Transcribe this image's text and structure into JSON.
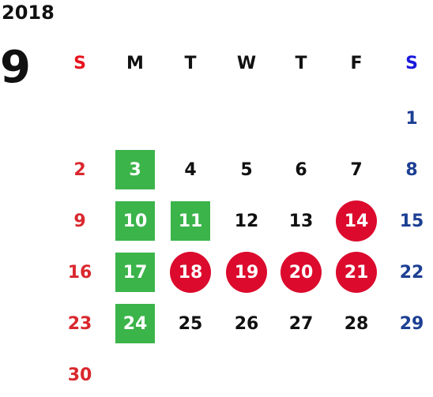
{
  "calendar": {
    "year": "2018",
    "month": "9",
    "weekdays": [
      "S",
      "M",
      "T",
      "W",
      "T",
      "F",
      "S"
    ],
    "days": [
      {
        "day": "1",
        "week": 0,
        "weekday": 6,
        "mark": "none"
      },
      {
        "day": "2",
        "week": 1,
        "weekday": 0,
        "mark": "none"
      },
      {
        "day": "3",
        "week": 1,
        "weekday": 1,
        "mark": "square"
      },
      {
        "day": "4",
        "week": 1,
        "weekday": 2,
        "mark": "none"
      },
      {
        "day": "5",
        "week": 1,
        "weekday": 3,
        "mark": "none"
      },
      {
        "day": "6",
        "week": 1,
        "weekday": 4,
        "mark": "none"
      },
      {
        "day": "7",
        "week": 1,
        "weekday": 5,
        "mark": "none"
      },
      {
        "day": "8",
        "week": 1,
        "weekday": 6,
        "mark": "none"
      },
      {
        "day": "9",
        "week": 2,
        "weekday": 0,
        "mark": "none"
      },
      {
        "day": "10",
        "week": 2,
        "weekday": 1,
        "mark": "square"
      },
      {
        "day": "11",
        "week": 2,
        "weekday": 2,
        "mark": "square"
      },
      {
        "day": "12",
        "week": 2,
        "weekday": 3,
        "mark": "none"
      },
      {
        "day": "13",
        "week": 2,
        "weekday": 4,
        "mark": "none"
      },
      {
        "day": "14",
        "week": 2,
        "weekday": 5,
        "mark": "circle"
      },
      {
        "day": "15",
        "week": 2,
        "weekday": 6,
        "mark": "none"
      },
      {
        "day": "16",
        "week": 3,
        "weekday": 0,
        "mark": "none"
      },
      {
        "day": "17",
        "week": 3,
        "weekday": 1,
        "mark": "square"
      },
      {
        "day": "18",
        "week": 3,
        "weekday": 2,
        "mark": "circle"
      },
      {
        "day": "19",
        "week": 3,
        "weekday": 3,
        "mark": "circle"
      },
      {
        "day": "20",
        "week": 3,
        "weekday": 4,
        "mark": "circle"
      },
      {
        "day": "21",
        "week": 3,
        "weekday": 5,
        "mark": "circle"
      },
      {
        "day": "22",
        "week": 3,
        "weekday": 6,
        "mark": "none"
      },
      {
        "day": "23",
        "week": 4,
        "weekday": 0,
        "mark": "none"
      },
      {
        "day": "24",
        "week": 4,
        "weekday": 1,
        "mark": "square"
      },
      {
        "day": "25",
        "week": 4,
        "weekday": 2,
        "mark": "none"
      },
      {
        "day": "26",
        "week": 4,
        "weekday": 3,
        "mark": "none"
      },
      {
        "day": "27",
        "week": 4,
        "weekday": 4,
        "mark": "none"
      },
      {
        "day": "28",
        "week": 4,
        "weekday": 5,
        "mark": "none"
      },
      {
        "day": "29",
        "week": 4,
        "weekday": 6,
        "mark": "none"
      },
      {
        "day": "30",
        "week": 5,
        "weekday": 0,
        "mark": "none"
      }
    ]
  },
  "colors": {
    "sunday_header": "#e8131e",
    "saturday_header": "#1a1adb",
    "sunday_day": "#d9282e",
    "saturday_day": "#1c3f93",
    "weekday": "#111111",
    "green_mark": "#3bb44a",
    "red_mark": "#dc0a2d",
    "mark_text": "#ffffff"
  }
}
